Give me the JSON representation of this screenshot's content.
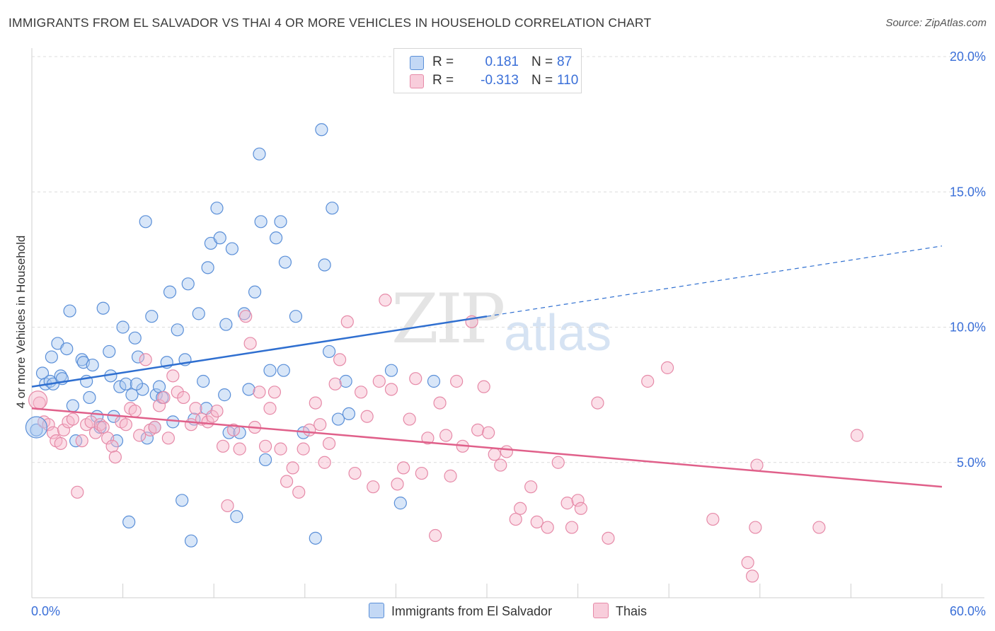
{
  "header": {
    "title": "IMMIGRANTS FROM EL SALVADOR VS THAI 4 OR MORE VEHICLES IN HOUSEHOLD CORRELATION CHART",
    "source": "Source: ZipAtlas.com"
  },
  "watermark": {
    "zip": "ZIP",
    "atlas": "atlas"
  },
  "legend": {
    "rows": [
      {
        "r_label": "R =",
        "r_value": "0.181",
        "n_label": "N =",
        "n_value": "87"
      },
      {
        "r_label": "R =",
        "r_value": "-0.313",
        "n_label": "N =",
        "n_value": "110"
      }
    ]
  },
  "bottom_legend": {
    "s1": "Immigrants from El Salvador",
    "s2": "Thais"
  },
  "colors": {
    "blue_fill": "#a8c8f0",
    "blue_stroke": "#5a8fd8",
    "blue_line": "#2f6fd0",
    "pink_fill": "#f6b8cc",
    "pink_stroke": "#e68aa8",
    "pink_line": "#e0608a",
    "tick_text": "#3a6fd8",
    "grid": "#dcdcdc"
  },
  "chart_data": {
    "type": "scatter",
    "title": "IMMIGRANTS FROM EL SALVADOR VS THAI 4 OR MORE VEHICLES IN HOUSEHOLD CORRELATION CHART",
    "xlabel": "",
    "ylabel": "4 or more Vehicles in Household",
    "xlim": [
      0,
      60
    ],
    "ylim": [
      0,
      20
    ],
    "x_tick_labels": [
      "0.0%",
      "60.0%"
    ],
    "y_ticks": [
      5,
      10,
      15,
      20
    ],
    "y_tick_labels": [
      "5.0%",
      "10.0%",
      "15.0%",
      "20.0%"
    ],
    "grid": true,
    "series": [
      {
        "name": "Immigrants from El Salvador",
        "points": [
          [
            0.3,
            6.2
          ],
          [
            0.7,
            8.3
          ],
          [
            0.9,
            7.9
          ],
          [
            1.2,
            8.0
          ],
          [
            1.3,
            8.9
          ],
          [
            1.4,
            7.9
          ],
          [
            1.7,
            9.4
          ],
          [
            1.9,
            8.2
          ],
          [
            2.3,
            9.2
          ],
          [
            2.5,
            10.6
          ],
          [
            2.7,
            7.1
          ],
          [
            2.9,
            5.8
          ],
          [
            3.3,
            8.8
          ],
          [
            3.4,
            8.7
          ],
          [
            3.6,
            8.0
          ],
          [
            3.8,
            7.4
          ],
          [
            4.0,
            8.6
          ],
          [
            4.3,
            6.7
          ],
          [
            4.5,
            6.3
          ],
          [
            4.7,
            10.7
          ],
          [
            5.1,
            9.1
          ],
          [
            5.2,
            8.2
          ],
          [
            5.4,
            6.7
          ],
          [
            5.6,
            5.8
          ],
          [
            5.8,
            7.8
          ],
          [
            6.0,
            10.0
          ],
          [
            6.2,
            7.9
          ],
          [
            6.4,
            2.8
          ],
          [
            6.6,
            7.5
          ],
          [
            6.8,
            9.6
          ],
          [
            7.0,
            8.9
          ],
          [
            7.3,
            7.7
          ],
          [
            7.5,
            13.9
          ],
          [
            7.6,
            5.9
          ],
          [
            7.9,
            10.4
          ],
          [
            8.1,
            6.3
          ],
          [
            8.2,
            7.5
          ],
          [
            8.4,
            7.8
          ],
          [
            8.6,
            7.4
          ],
          [
            8.9,
            8.7
          ],
          [
            9.1,
            11.3
          ],
          [
            9.3,
            6.5
          ],
          [
            9.6,
            9.9
          ],
          [
            9.9,
            3.6
          ],
          [
            10.1,
            8.8
          ],
          [
            10.3,
            11.6
          ],
          [
            10.5,
            2.1
          ],
          [
            10.7,
            6.6
          ],
          [
            11.0,
            10.5
          ],
          [
            11.3,
            8.0
          ],
          [
            11.5,
            7.0
          ],
          [
            11.6,
            12.2
          ],
          [
            11.8,
            13.1
          ],
          [
            12.2,
            14.4
          ],
          [
            12.4,
            13.3
          ],
          [
            12.8,
            10.1
          ],
          [
            13.0,
            6.1
          ],
          [
            13.2,
            12.9
          ],
          [
            13.5,
            3.0
          ],
          [
            13.7,
            6.1
          ],
          [
            14.0,
            10.5
          ],
          [
            14.3,
            7.7
          ],
          [
            14.7,
            11.3
          ],
          [
            15.0,
            16.4
          ],
          [
            15.1,
            13.9
          ],
          [
            15.4,
            5.1
          ],
          [
            15.7,
            8.4
          ],
          [
            16.1,
            13.3
          ],
          [
            16.4,
            13.9
          ],
          [
            16.6,
            8.4
          ],
          [
            16.7,
            12.4
          ],
          [
            17.4,
            10.4
          ],
          [
            17.9,
            6.1
          ],
          [
            18.7,
            2.2
          ],
          [
            19.1,
            17.3
          ],
          [
            19.3,
            12.3
          ],
          [
            19.6,
            9.1
          ],
          [
            19.8,
            14.4
          ],
          [
            20.2,
            6.6
          ],
          [
            20.7,
            8.0
          ],
          [
            20.9,
            6.8
          ],
          [
            23.7,
            8.4
          ],
          [
            24.3,
            3.5
          ],
          [
            26.5,
            8.0
          ],
          [
            6.9,
            7.9
          ],
          [
            12.7,
            7.5
          ],
          [
            2.0,
            8.1
          ]
        ]
      },
      {
        "name": "Thais",
        "points": [
          [
            0.5,
            7.2
          ],
          [
            0.8,
            6.5
          ],
          [
            1.1,
            6.4
          ],
          [
            1.4,
            6.1
          ],
          [
            1.6,
            5.8
          ],
          [
            1.9,
            5.7
          ],
          [
            2.1,
            6.2
          ],
          [
            2.4,
            6.5
          ],
          [
            2.7,
            6.6
          ],
          [
            3.0,
            3.9
          ],
          [
            3.3,
            5.8
          ],
          [
            3.6,
            6.4
          ],
          [
            3.9,
            6.5
          ],
          [
            4.2,
            6.1
          ],
          [
            4.5,
            6.4
          ],
          [
            4.7,
            6.3
          ],
          [
            5.0,
            5.9
          ],
          [
            5.3,
            5.6
          ],
          [
            5.5,
            5.2
          ],
          [
            5.9,
            6.5
          ],
          [
            6.2,
            6.4
          ],
          [
            6.5,
            7.0
          ],
          [
            6.8,
            6.9
          ],
          [
            7.1,
            6.0
          ],
          [
            7.5,
            8.8
          ],
          [
            7.8,
            6.2
          ],
          [
            8.1,
            6.3
          ],
          [
            8.4,
            7.1
          ],
          [
            8.7,
            7.4
          ],
          [
            9.0,
            5.9
          ],
          [
            9.3,
            8.2
          ],
          [
            9.6,
            7.6
          ],
          [
            10.0,
            7.4
          ],
          [
            10.5,
            6.4
          ],
          [
            10.8,
            7.0
          ],
          [
            11.2,
            6.6
          ],
          [
            11.6,
            6.5
          ],
          [
            11.9,
            6.7
          ],
          [
            12.2,
            6.9
          ],
          [
            12.6,
            5.6
          ],
          [
            12.9,
            3.4
          ],
          [
            13.3,
            6.2
          ],
          [
            13.7,
            5.5
          ],
          [
            14.1,
            10.4
          ],
          [
            14.4,
            9.4
          ],
          [
            14.7,
            6.3
          ],
          [
            15.0,
            7.6
          ],
          [
            15.4,
            5.6
          ],
          [
            15.7,
            7.0
          ],
          [
            16.0,
            7.6
          ],
          [
            16.4,
            5.5
          ],
          [
            16.8,
            4.3
          ],
          [
            17.2,
            4.8
          ],
          [
            17.6,
            3.9
          ],
          [
            17.9,
            5.5
          ],
          [
            18.3,
            6.2
          ],
          [
            18.7,
            7.2
          ],
          [
            19.0,
            6.4
          ],
          [
            19.3,
            5.0
          ],
          [
            19.6,
            5.7
          ],
          [
            20.0,
            7.9
          ],
          [
            20.3,
            8.8
          ],
          [
            20.8,
            10.2
          ],
          [
            21.3,
            4.6
          ],
          [
            21.7,
            7.6
          ],
          [
            22.1,
            6.7
          ],
          [
            22.5,
            4.1
          ],
          [
            22.9,
            8.0
          ],
          [
            23.3,
            11.0
          ],
          [
            23.7,
            7.7
          ],
          [
            24.1,
            4.2
          ],
          [
            24.5,
            4.8
          ],
          [
            24.9,
            6.6
          ],
          [
            25.3,
            8.1
          ],
          [
            25.7,
            4.6
          ],
          [
            26.1,
            5.9
          ],
          [
            26.6,
            2.3
          ],
          [
            26.9,
            7.2
          ],
          [
            27.3,
            6.0
          ],
          [
            27.6,
            4.5
          ],
          [
            28.0,
            8.0
          ],
          [
            28.4,
            5.6
          ],
          [
            29.0,
            10.2
          ],
          [
            29.4,
            6.2
          ],
          [
            29.8,
            7.8
          ],
          [
            30.1,
            6.1
          ],
          [
            30.5,
            5.3
          ],
          [
            30.9,
            4.9
          ],
          [
            31.3,
            5.4
          ],
          [
            31.9,
            2.9
          ],
          [
            32.2,
            3.3
          ],
          [
            32.9,
            4.1
          ],
          [
            33.3,
            2.8
          ],
          [
            34.0,
            2.6
          ],
          [
            34.7,
            5.0
          ],
          [
            35.3,
            3.5
          ],
          [
            35.6,
            2.6
          ],
          [
            36.0,
            3.6
          ],
          [
            36.2,
            3.3
          ],
          [
            37.3,
            7.2
          ],
          [
            38.0,
            2.2
          ],
          [
            40.6,
            8.0
          ],
          [
            41.9,
            8.5
          ],
          [
            44.9,
            2.9
          ],
          [
            47.2,
            1.3
          ],
          [
            47.5,
            0.8
          ],
          [
            47.7,
            2.6
          ],
          [
            47.8,
            4.9
          ],
          [
            51.9,
            2.6
          ],
          [
            54.4,
            6.0
          ]
        ]
      }
    ],
    "trendlines": [
      {
        "series": "Immigrants from El Salvador",
        "x0": 0,
        "y0": 7.8,
        "x1": 30.0,
        "y1": 10.4,
        "dashed_to_x": 60,
        "dashed_to_y": 13.0
      },
      {
        "series": "Thais",
        "x0": 0,
        "y0": 7.0,
        "x1": 60,
        "y1": 4.1
      }
    ]
  }
}
